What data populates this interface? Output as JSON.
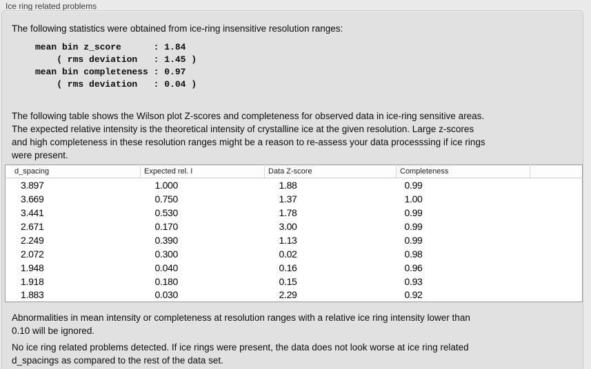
{
  "panel": {
    "title": "Ice ring related problems"
  },
  "intro": "The following statistics were obtained from ice-ring insensitive resolution ranges:",
  "stats_block": "mean bin z_score      : 1.84\n    ( rms deviation   : 1.45 )\nmean bin completeness : 0.97\n    ( rms deviation   : 0.04 )",
  "description": "The following table shows the Wilson plot Z-scores and completeness for observed data in ice-ring sensitive areas.\nThe expected relative intensity is the theoretical intensity of crystalline ice at the given resolution. Large z-scores\nand high completeness in these resolution ranges might be a reason to re-assess your data processsing if ice rings\nwere present.",
  "table": {
    "columns": [
      "d_spacing",
      "Expected rel. I",
      "Data Z-score",
      "Completeness"
    ],
    "rows": [
      [
        "3.897",
        "1.000",
        "1.88",
        "0.99"
      ],
      [
        "3.669",
        "0.750",
        "1.37",
        "1.00"
      ],
      [
        "3.441",
        "0.530",
        "1.78",
        "0.99"
      ],
      [
        "2.671",
        "0.170",
        "3.00",
        "0.99"
      ],
      [
        "2.249",
        "0.390",
        "1.13",
        "0.99"
      ],
      [
        "2.072",
        "0.300",
        "0.02",
        "0.98"
      ],
      [
        "1.948",
        "0.040",
        "0.16",
        "0.96"
      ],
      [
        "1.918",
        "0.180",
        "0.15",
        "0.93"
      ],
      [
        "1.883",
        "0.030",
        "2.29",
        "0.92"
      ]
    ]
  },
  "notes": {
    "ignore_note": "Abnormalities in mean intensity or completeness at resolution ranges with a relative ice ring intensity lower than\n0.10 will be ignored.",
    "conclusion": "No ice ring related problems detected. If ice rings were present, the data does not look worse at ice ring related\nd_spacings as compared to the rest of the data set."
  },
  "colors": {
    "page_bg": "#eaeaea",
    "panel_bg": "#e1e1e1",
    "panel_border": "#c7c7c7",
    "table_bg": "#ffffff",
    "table_border": "#979797",
    "header_separator": "#d8d8d8",
    "text": "#0c0c0c",
    "title_text": "#3b3b3b"
  }
}
